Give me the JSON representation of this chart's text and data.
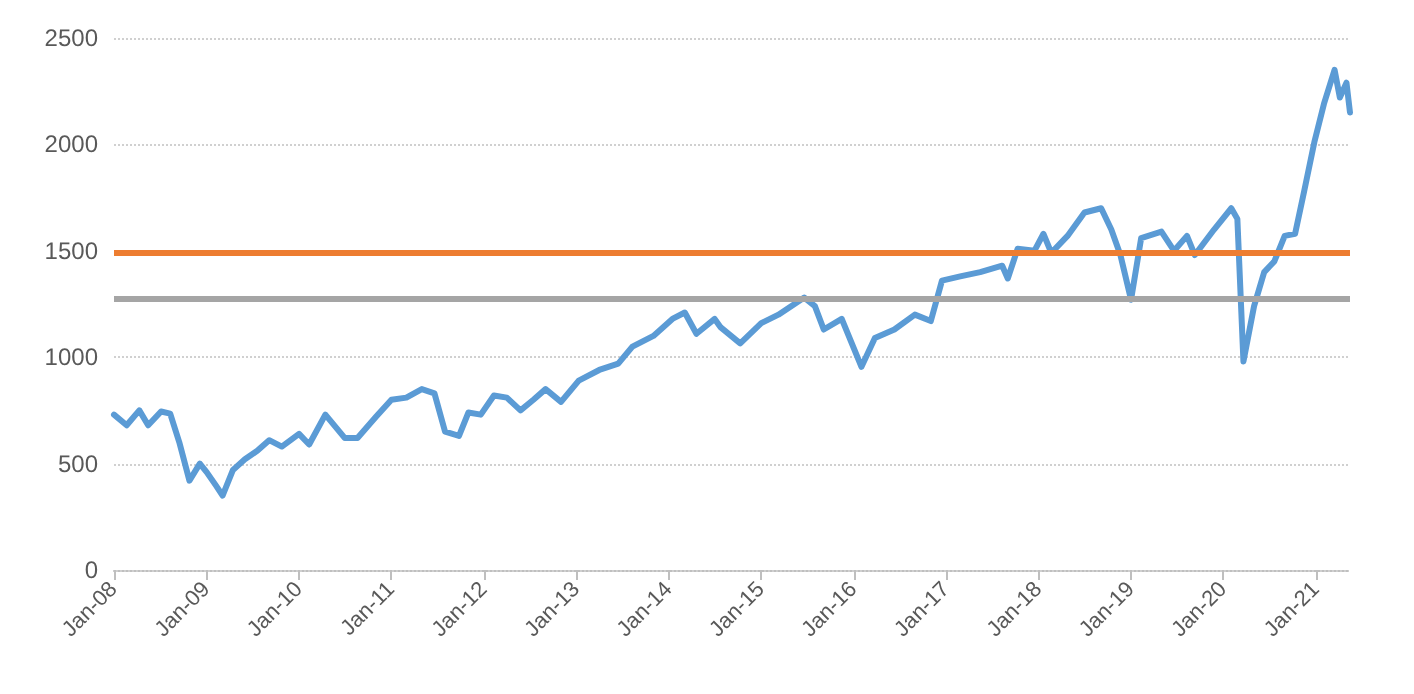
{
  "chart_data": {
    "type": "line",
    "x": [
      "2008-01-01",
      "2008-02-20",
      "2008-04-10",
      "2008-05-15",
      "2008-07-05",
      "2008-08-10",
      "2008-09-15",
      "2008-10-25",
      "2008-12-05",
      "2009-01-01",
      "2009-02-05",
      "2009-03-05",
      "2009-04-15",
      "2009-06-01",
      "2009-07-20",
      "2009-09-05",
      "2009-10-25",
      "2010-01-01",
      "2010-02-10",
      "2010-04-15",
      "2010-07-01",
      "2010-08-20",
      "2010-11-01",
      "2011-01-01",
      "2011-03-01",
      "2011-05-01",
      "2011-06-20",
      "2011-08-01",
      "2011-09-25",
      "2011-11-01",
      "2011-12-20",
      "2012-02-10",
      "2012-04-01",
      "2012-05-25",
      "2012-07-15",
      "2012-09-01",
      "2012-11-01",
      "2013-01-10",
      "2013-04-01",
      "2013-06-15",
      "2013-08-10",
      "2013-11-01",
      "2014-01-15",
      "2014-03-05",
      "2014-04-20",
      "2014-07-01",
      "2014-07-25",
      "2014-10-10",
      "2015-01-01",
      "2015-03-10",
      "2015-06-20",
      "2015-08-01",
      "2015-09-05",
      "2015-11-15",
      "2016-02-01",
      "2016-03-25",
      "2016-06-10",
      "2016-08-30",
      "2016-11-01",
      "2016-12-15",
      "2017-02-25",
      "2017-05-15",
      "2017-08-10",
      "2017-09-01",
      "2017-10-10",
      "2017-12-15",
      "2018-01-20",
      "2018-02-20",
      "2018-04-25",
      "2018-07-01",
      "2018-09-05",
      "2018-10-15",
      "2018-11-20",
      "2019-01-01",
      "2019-02-10",
      "2019-05-01",
      "2019-06-20",
      "2019-08-10",
      "2019-09-10",
      "2019-11-25",
      "2020-02-01",
      "2020-02-25",
      "2020-03-20",
      "2020-05-01",
      "2020-06-10",
      "2020-07-20",
      "2020-08-30",
      "2020-10-10",
      "2020-11-15",
      "2020-12-25",
      "2021-02-01",
      "2021-03-15",
      "2021-04-05",
      "2021-05-01",
      "2021-05-15"
    ],
    "series": [
      {
        "color": "#5b9bd5",
        "values": [
          730,
          680,
          750,
          680,
          745,
          735,
          600,
          420,
          500,
          460,
          400,
          350,
          470,
          520,
          560,
          610,
          580,
          640,
          590,
          730,
          620,
          620,
          720,
          800,
          810,
          850,
          830,
          650,
          630,
          740,
          730,
          820,
          810,
          750,
          800,
          850,
          790,
          890,
          940,
          970,
          1050,
          1100,
          1180,
          1210,
          1110,
          1180,
          1140,
          1065,
          1160,
          1200,
          1280,
          1240,
          1130,
          1180,
          955,
          1090,
          1130,
          1200,
          1170,
          1360,
          1380,
          1400,
          1430,
          1370,
          1510,
          1500,
          1580,
          1490,
          1570,
          1680,
          1700,
          1600,
          1480,
          1270,
          1560,
          1590,
          1500,
          1570,
          1480,
          1600,
          1700,
          1650,
          980,
          1240,
          1400,
          1450,
          1570,
          1580,
          1780,
          2010,
          2190,
          2350,
          2220,
          2290,
          2150
        ]
      }
    ],
    "xlim": [
      "2008-01-01",
      "2021-05-15"
    ],
    "xticks": [
      {
        "value": "2008-01-01",
        "label": "Jan-08"
      },
      {
        "value": "2009-01-01",
        "label": "Jan-09"
      },
      {
        "value": "2010-01-01",
        "label": "Jan-10"
      },
      {
        "value": "2011-01-01",
        "label": "Jan-11"
      },
      {
        "value": "2012-01-01",
        "label": "Jan-12"
      },
      {
        "value": "2013-01-01",
        "label": "Jan-13"
      },
      {
        "value": "2014-01-01",
        "label": "Jan-14"
      },
      {
        "value": "2015-01-01",
        "label": "Jan-15"
      },
      {
        "value": "2016-01-01",
        "label": "Jan-16"
      },
      {
        "value": "2017-01-01",
        "label": "Jan-17"
      },
      {
        "value": "2018-01-01",
        "label": "Jan-18"
      },
      {
        "value": "2019-01-01",
        "label": "Jan-19"
      },
      {
        "value": "2020-01-01",
        "label": "Jan-20"
      },
      {
        "value": "2021-01-01",
        "label": "Jan-21"
      }
    ],
    "ylim": [
      0,
      2500
    ],
    "yticks": [
      0,
      500,
      1000,
      1500,
      2000,
      2500
    ],
    "ref_lines": [
      {
        "axis": "y",
        "value": 1490,
        "color": "#ed7d31"
      },
      {
        "axis": "y",
        "value": 1280,
        "color": "#a5a5a5"
      }
    ],
    "grid": "y",
    "marker": "none",
    "line_style": "solid"
  }
}
